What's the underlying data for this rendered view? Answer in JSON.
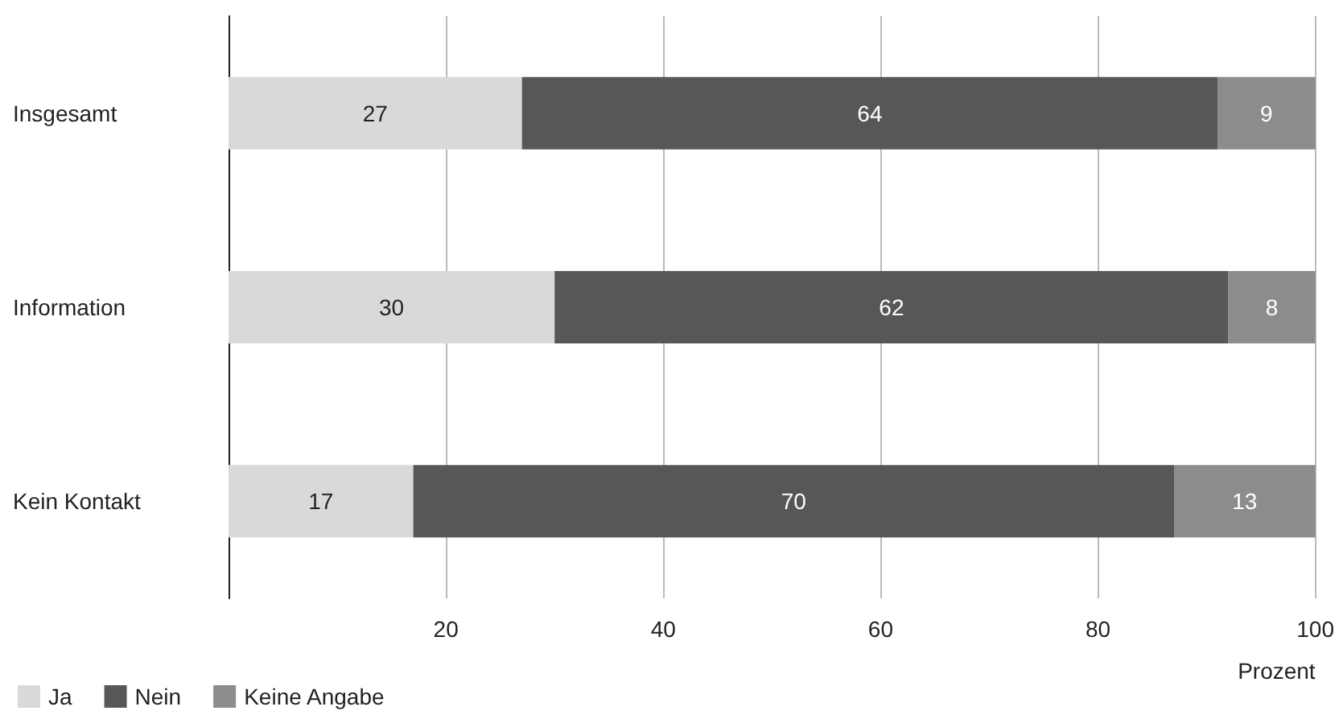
{
  "chart_data": {
    "type": "bar",
    "orientation": "horizontal",
    "stacked": true,
    "data_labels": true,
    "categories": [
      "Insgesamt",
      "Information",
      "Kein Kontakt"
    ],
    "series": [
      {
        "name": "Ja",
        "color": "#d9d9d9",
        "values": [
          27,
          30,
          17
        ]
      },
      {
        "name": "Nein",
        "color": "#575757",
        "values": [
          64,
          62,
          70
        ]
      },
      {
        "name": "Keine Angabe",
        "color": "#8c8c8c",
        "values": [
          9,
          8,
          13
        ]
      }
    ],
    "xlabel": "Prozent",
    "xlim": [
      0,
      100
    ],
    "xticks": [
      20,
      40,
      60,
      80,
      100
    ],
    "grid": "x",
    "legend": "bottom left"
  }
}
